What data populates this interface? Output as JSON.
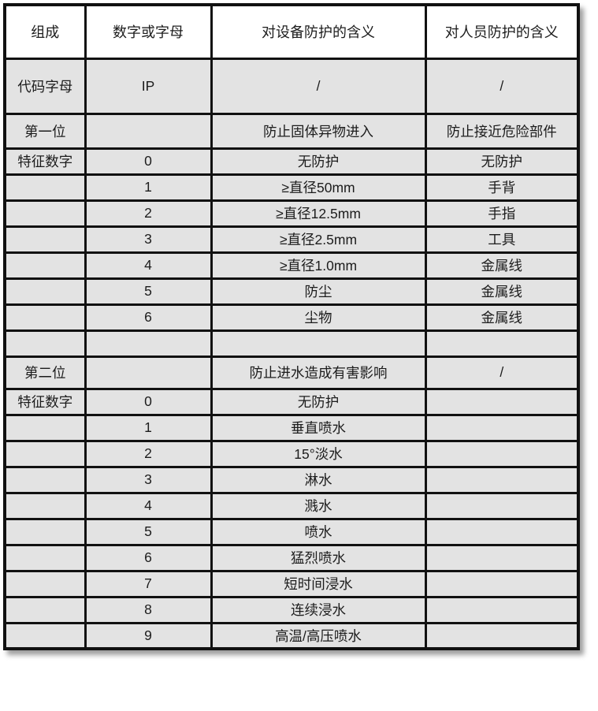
{
  "table": {
    "headers": [
      "组成",
      "数字或字母",
      "对设备防护的含义",
      "对人员防护的含义"
    ],
    "rows": [
      [
        "代码字母",
        "IP",
        "/",
        "/"
      ],
      [
        "第一位",
        "",
        "防止固体异物进入",
        "防止接近危险部件"
      ],
      [
        "特征数字",
        "0",
        "无防护",
        "无防护"
      ],
      [
        "",
        "1",
        "≥直径50mm",
        "手背"
      ],
      [
        "",
        "2",
        "≥直径12.5mm",
        "手指"
      ],
      [
        "",
        "3",
        "≥直径2.5mm",
        "工具"
      ],
      [
        "",
        "4",
        "≥直径1.0mm",
        "金属线"
      ],
      [
        "",
        "5",
        "防尘",
        "金属线"
      ],
      [
        "",
        "6",
        "尘物",
        "金属线"
      ],
      [
        "",
        "",
        "",
        ""
      ],
      [
        "第二位",
        "",
        "防止进水造成有害影响",
        "/"
      ],
      [
        "特征数字",
        "0",
        "无防护",
        ""
      ],
      [
        "",
        "1",
        "垂直喷水",
        ""
      ],
      [
        "",
        "2",
        "15°淡水",
        ""
      ],
      [
        "",
        "3",
        "淋水",
        ""
      ],
      [
        "",
        "4",
        "溅水",
        ""
      ],
      [
        "",
        "5",
        "喷水",
        ""
      ],
      [
        "",
        "6",
        "猛烈喷水",
        ""
      ],
      [
        "",
        "7",
        "短时间浸水",
        ""
      ],
      [
        "",
        "8",
        "连续浸水",
        ""
      ],
      [
        "",
        "9",
        "高温/高压喷水",
        ""
      ]
    ],
    "colors": {
      "header_bg": "#ffffff",
      "row_bg": "#e3e3e3",
      "border": "#111111",
      "text": "#1c1c1c"
    }
  }
}
